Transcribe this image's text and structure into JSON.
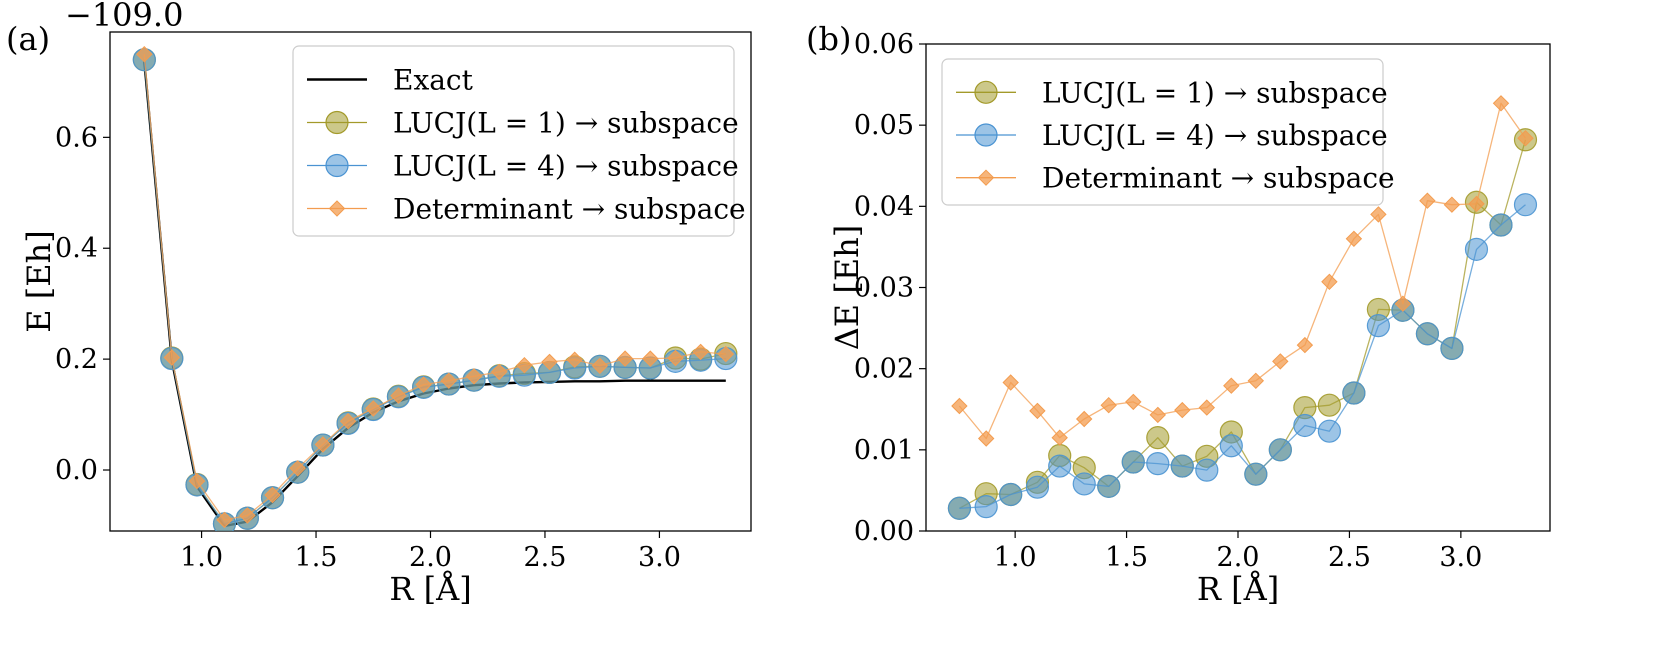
{
  "chart_data": [
    {
      "type": "line",
      "panel_label": "(a)",
      "offset_label": "−109.0",
      "xlabel": "R [Å]",
      "ylabel": "E [Eh]",
      "xlim": [
        0.6,
        3.4
      ],
      "ylim": [
        -0.11,
        0.79
      ],
      "xticks": [
        "1.0",
        "1.5",
        "2.0",
        "2.5",
        "3.0"
      ],
      "yticks": [
        "0.0",
        "0.2",
        "0.4",
        "0.6"
      ],
      "legend_position": "upper-right",
      "x": [
        0.75,
        0.87,
        0.98,
        1.1,
        1.2,
        1.31,
        1.42,
        1.53,
        1.64,
        1.75,
        1.86,
        1.97,
        2.08,
        2.19,
        2.3,
        2.41,
        2.52,
        2.63,
        2.74,
        2.85,
        2.96,
        3.07,
        3.18,
        3.29
      ],
      "series": [
        {
          "name": "Exact",
          "color": "#000000",
          "marker": "none",
          "values": [
            0.737,
            0.198,
            -0.03,
            -0.101,
            -0.093,
            -0.058,
            -0.011,
            0.038,
            0.076,
            0.104,
            0.124,
            0.138,
            0.147,
            0.153,
            0.156,
            0.158,
            0.159,
            0.16,
            0.16,
            0.161,
            0.161,
            0.161,
            0.161,
            0.161
          ]
        },
        {
          "name": "LUCJ(L = 1) → subspace",
          "color": "#a39a2a",
          "marker": "circle",
          "values": [
            0.74,
            0.202,
            -0.026,
            -0.097,
            -0.087,
            -0.05,
            -0.004,
            0.045,
            0.085,
            0.11,
            0.133,
            0.15,
            0.155,
            0.162,
            0.17,
            0.174,
            0.176,
            0.186,
            0.187,
            0.185,
            0.184,
            0.202,
            0.2,
            0.21
          ]
        },
        {
          "name": "LUCJ(L = 4) → subspace",
          "color": "#4a93d2",
          "marker": "circle",
          "values": [
            0.74,
            0.201,
            -0.027,
            -0.097,
            -0.087,
            -0.05,
            -0.004,
            0.045,
            0.084,
            0.109,
            0.132,
            0.149,
            0.155,
            0.162,
            0.169,
            0.171,
            0.176,
            0.184,
            0.187,
            0.185,
            0.184,
            0.196,
            0.198,
            0.201
          ]
        },
        {
          "name": "Determinant → subspace",
          "color": "#f39c4f",
          "marker": "diamond",
          "values": [
            0.75,
            0.203,
            -0.02,
            -0.09,
            -0.082,
            -0.045,
            0.003,
            0.046,
            0.088,
            0.111,
            0.134,
            0.154,
            0.161,
            0.169,
            0.177,
            0.189,
            0.195,
            0.199,
            0.188,
            0.201,
            0.201,
            0.202,
            0.213,
            0.209
          ]
        }
      ]
    },
    {
      "type": "line",
      "panel_label": "(b)",
      "xlabel": "R [Å]",
      "ylabel": "ΔE [Eh]",
      "xlim": [
        0.6,
        3.4
      ],
      "ylim": [
        0,
        0.06
      ],
      "xticks": [
        "1.0",
        "1.5",
        "2.0",
        "2.5",
        "3.0"
      ],
      "yticks": [
        "0.00",
        "0.01",
        "0.02",
        "0.03",
        "0.04",
        "0.05",
        "0.06"
      ],
      "legend_position": "upper-left",
      "x": [
        0.75,
        0.87,
        0.98,
        1.1,
        1.2,
        1.31,
        1.42,
        1.53,
        1.64,
        1.75,
        1.86,
        1.97,
        2.08,
        2.19,
        2.3,
        2.41,
        2.52,
        2.63,
        2.74,
        2.85,
        2.96,
        3.07,
        3.18,
        3.29
      ],
      "series": [
        {
          "name": "LUCJ(L = 1) → subspace",
          "color": "#a39a2a",
          "marker": "circle",
          "values": [
            0.0028,
            0.0046,
            0.0045,
            0.006,
            0.0093,
            0.0078,
            0.0055,
            0.0085,
            0.0115,
            0.008,
            0.0092,
            0.0122,
            0.007,
            0.01,
            0.0152,
            0.0155,
            0.017,
            0.0273,
            0.0272,
            0.0243,
            0.0225,
            0.0405,
            0.0377,
            0.0482
          ]
        },
        {
          "name": "LUCJ(L = 4) → subspace",
          "color": "#4a93d2",
          "marker": "circle",
          "values": [
            0.0028,
            0.003,
            0.0045,
            0.0054,
            0.008,
            0.0058,
            0.0055,
            0.0085,
            0.0083,
            0.008,
            0.0075,
            0.0105,
            0.007,
            0.01,
            0.013,
            0.0123,
            0.017,
            0.0253,
            0.0272,
            0.0243,
            0.0225,
            0.0347,
            0.0377,
            0.0402
          ]
        },
        {
          "name": "Determinant → subspace",
          "color": "#f39c4f",
          "marker": "diamond",
          "values": [
            0.0154,
            0.0114,
            0.0183,
            0.0148,
            0.0115,
            0.0138,
            0.0155,
            0.0159,
            0.0143,
            0.0149,
            0.0152,
            0.0179,
            0.0185,
            0.0209,
            0.0229,
            0.0307,
            0.036,
            0.039,
            0.028,
            0.0407,
            0.0402,
            0.0403,
            0.0527,
            0.0484
          ]
        }
      ]
    }
  ]
}
